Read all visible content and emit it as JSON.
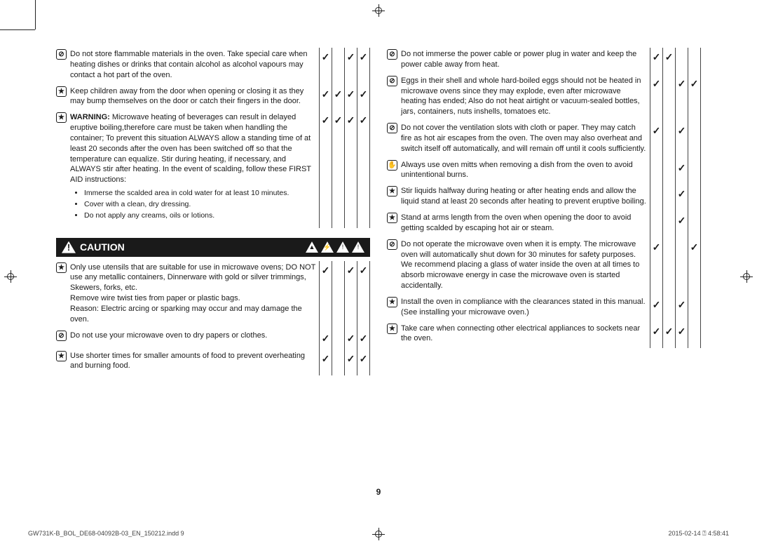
{
  "page_number": "9",
  "footer_left": "GW731K-B_BOL_DE68-04092B-03_EN_150212.indd   9",
  "footer_right": "2015-02-14   ⍰ 4:58:41",
  "caution_label": "CAUTION",
  "icons": {
    "prohibit": "⊘",
    "star": "★",
    "mitt": "✋"
  },
  "check": "✓",
  "left_rows": [
    {
      "icon": "prohibit",
      "text": "Do not store flammable materials in the oven. Take special care when heating dishes or drinks that contain alcohol as alcohol vapours may contact a hot part of the oven.",
      "checks": [
        true,
        false,
        true,
        true
      ]
    },
    {
      "icon": "star",
      "text": "Keep children away from the door when opening or closing it as they may bump themselves on the door or catch their fingers in the door.",
      "checks": [
        true,
        true,
        true,
        true
      ]
    },
    {
      "icon": "star",
      "warning": true,
      "text": "Microwave heating of beverages can result in delayed eruptive boiling,therefore care must be taken when handling the container; To prevent this situation ALWAYS allow a standing time of at least 20 seconds after the oven has been switched off so that the temperature can equalize. Stir during heating, if necessary, and ALWAYS stir after heating. In the event of scalding, follow these FIRST AID instructions:",
      "bullets": [
        "Immerse the scalded area in cold water for at least 10 minutes.",
        "Cover with a clean, dry dressing.",
        "Do not apply any creams, oils or lotions."
      ],
      "checks": [
        true,
        true,
        true,
        true
      ]
    }
  ],
  "left_caution_rows": [
    {
      "icon": "star",
      "text": "Only use utensils that are suitable for use in microwave ovens; DO NOT use any metallic containers, Dinnerware with gold or silver trimmings, Skewers, forks, etc.\nRemove wire twist ties from paper or plastic bags.\nReason: Electric arcing or sparking may occur and may damage the oven.",
      "checks": [
        true,
        false,
        true,
        true
      ]
    },
    {
      "icon": "prohibit",
      "text": "Do not use your microwave oven to dry papers or clothes.",
      "checks": [
        true,
        false,
        true,
        true
      ]
    },
    {
      "icon": "star",
      "text": "Use shorter times for smaller amounts of food to prevent overheating and burning food.",
      "checks": [
        true,
        false,
        true,
        true
      ]
    }
  ],
  "right_rows": [
    {
      "icon": "prohibit",
      "text": "Do not immerse the power cable or power plug in water and keep the power cable away from heat.",
      "checks": [
        true,
        true,
        false,
        false
      ]
    },
    {
      "icon": "prohibit",
      "text": "Eggs in their shell and whole hard-boiled eggs should not be heated in microwave ovens since they may explode, even after microwave heating has ended; Also do not heat airtight or vacuum-sealed bottles, jars, containers, nuts inshells, tomatoes etc.",
      "checks": [
        true,
        false,
        true,
        true
      ]
    },
    {
      "icon": "prohibit",
      "text": "Do not cover the ventilation slots with cloth or paper. They may catch fire as hot air escapes from the oven. The oven may also overheat and switch itself off automatically, and will remain off until it cools sufficiently.",
      "checks": [
        true,
        false,
        true,
        false
      ]
    },
    {
      "icon": "mitt",
      "text": "Always use oven mitts when removing a dish from the oven to avoid unintentional burns.",
      "checks": [
        false,
        false,
        true,
        false
      ]
    },
    {
      "icon": "star",
      "text": "Stir liquids halfway during heating or after heating ends and allow the liquid stand at least 20 seconds after heating to prevent eruptive boiling.",
      "checks": [
        false,
        false,
        true,
        false
      ]
    },
    {
      "icon": "star",
      "text": "Stand at arms length from the oven when opening the door to avoid getting scalded by escaping hot air or steam.",
      "checks": [
        false,
        false,
        true,
        false
      ]
    },
    {
      "icon": "prohibit",
      "text": "Do not operate the microwave oven when it is empty. The microwave oven will automatically shut down for 30 minutes for safety purposes. We recommend placing a glass of water inside the oven at all times to absorb microwave energy in case the microwave oven is started accidentally.",
      "checks": [
        true,
        false,
        false,
        true
      ]
    },
    {
      "icon": "star",
      "text": "Install the oven in compliance with the clearances stated in this manual. (See installing your microwave oven.)",
      "checks": [
        true,
        false,
        true,
        false
      ]
    },
    {
      "icon": "star",
      "text": "Take care when connecting other electrical appliances to sockets near the oven.",
      "checks": [
        true,
        true,
        true,
        false
      ]
    }
  ]
}
